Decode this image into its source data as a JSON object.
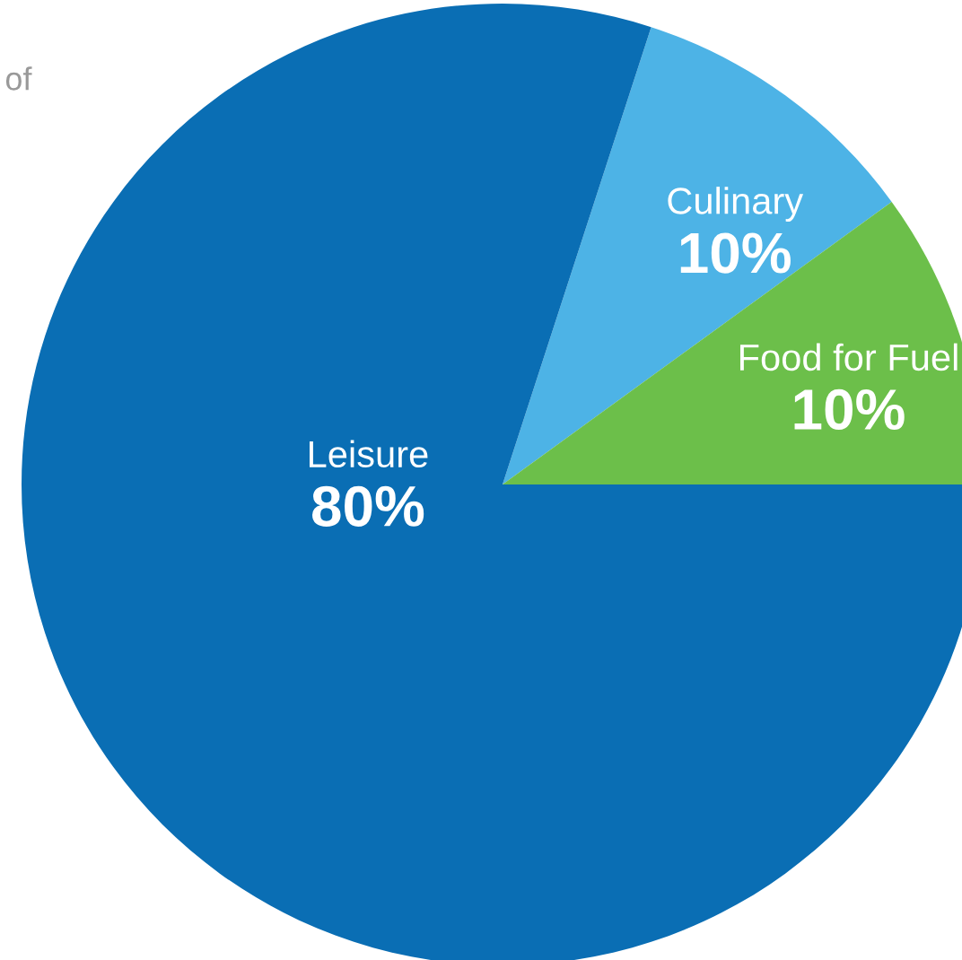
{
  "chart_data": {
    "type": "pie",
    "categories": [
      "Culinary",
      "Food for Fuel",
      "Leisure"
    ],
    "values": [
      10,
      10,
      80
    ],
    "value_labels": [
      "10%",
      "10%",
      "80%"
    ],
    "colors": [
      "#4db3e6",
      "#6cbf4a",
      "#0a6eb4"
    ],
    "annotations": [
      "of"
    ]
  }
}
